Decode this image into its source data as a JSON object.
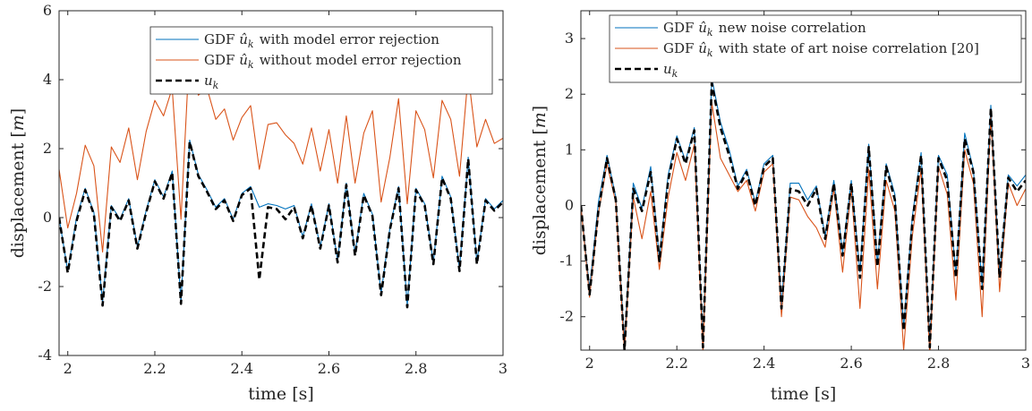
{
  "colors": {
    "blue": "#0072BD",
    "orange": "#D95319",
    "black": "#000000",
    "axis": "#262626"
  },
  "chart_data": [
    {
      "type": "line",
      "xlabel": "time [s]",
      "ylabel": "displacement [m]",
      "xlim": [
        1.98,
        3.0
      ],
      "ylim": [
        -4,
        6
      ],
      "xticks": [
        "2",
        "2.2",
        "2.4",
        "2.6",
        "2.8",
        "3"
      ],
      "yticks": [
        "-4",
        "-2",
        "0",
        "2",
        "4",
        "6"
      ],
      "grid": false,
      "legend_position": "top-right",
      "x": [
        1.98,
        2.0,
        2.02,
        2.04,
        2.06,
        2.08,
        2.1,
        2.12,
        2.14,
        2.16,
        2.18,
        2.2,
        2.22,
        2.24,
        2.26,
        2.28,
        2.3,
        2.32,
        2.34,
        2.36,
        2.38,
        2.4,
        2.42,
        2.44,
        2.46,
        2.48,
        2.5,
        2.52,
        2.54,
        2.56,
        2.58,
        2.6,
        2.62,
        2.64,
        2.66,
        2.68,
        2.7,
        2.72,
        2.74,
        2.76,
        2.78,
        2.8,
        2.82,
        2.84,
        2.86,
        2.88,
        2.9,
        2.92,
        2.94,
        2.96,
        2.98,
        3.0
      ],
      "series": [
        {
          "name": "GDF û_k with model error rejection",
          "color": "blue",
          "dash": false,
          "values": [
            0.0,
            -1.55,
            0.0,
            0.85,
            0.15,
            -2.45,
            0.35,
            -0.05,
            0.55,
            -0.85,
            0.2,
            1.1,
            0.6,
            1.35,
            -2.45,
            2.25,
            1.25,
            0.8,
            0.3,
            0.55,
            -0.05,
            0.7,
            0.9,
            0.3,
            0.4,
            0.35,
            0.25,
            0.35,
            -0.55,
            0.4,
            -0.85,
            0.4,
            -1.25,
            1.0,
            -1.05,
            0.7,
            0.1,
            -2.2,
            -0.3,
            0.9,
            -2.55,
            0.85,
            0.4,
            -1.3,
            1.2,
            0.6,
            -1.5,
            1.75,
            -1.3,
            0.55,
            0.25,
            0.5
          ]
        },
        {
          "name": "GDF û_k without model error rejection",
          "color": "orange",
          "dash": false,
          "values": [
            1.4,
            -0.3,
            0.7,
            2.1,
            1.5,
            -1.0,
            2.05,
            1.6,
            2.6,
            1.1,
            2.5,
            3.4,
            2.95,
            3.75,
            -0.05,
            4.95,
            3.55,
            3.75,
            2.85,
            3.15,
            2.25,
            2.9,
            3.25,
            1.4,
            2.7,
            2.75,
            2.4,
            2.15,
            1.55,
            2.6,
            1.35,
            2.55,
            1.0,
            2.95,
            1.0,
            2.45,
            3.1,
            0.45,
            1.75,
            3.45,
            0.4,
            3.1,
            2.55,
            1.15,
            3.4,
            2.85,
            1.2,
            4.15,
            2.05,
            2.85,
            2.15,
            2.3
          ]
        },
        {
          "name": "u_k",
          "color": "black",
          "dash": true,
          "values": [
            0.0,
            -1.6,
            -0.1,
            0.8,
            0.1,
            -2.55,
            0.3,
            -0.1,
            0.5,
            -0.9,
            0.15,
            1.05,
            0.55,
            1.3,
            -2.5,
            2.2,
            1.2,
            0.75,
            0.25,
            0.5,
            -0.1,
            0.65,
            0.85,
            -1.8,
            0.3,
            0.25,
            -0.05,
            0.3,
            -0.6,
            0.35,
            -0.9,
            0.35,
            -1.3,
            0.95,
            -1.1,
            0.65,
            0.05,
            -2.25,
            -0.35,
            0.85,
            -2.6,
            0.8,
            0.35,
            -1.35,
            1.15,
            0.55,
            -1.55,
            1.7,
            -1.35,
            0.5,
            0.2,
            0.45
          ]
        }
      ]
    },
    {
      "type": "line",
      "xlabel": "time [s]",
      "ylabel": "displacement [m]",
      "xlim": [
        1.98,
        3.0
      ],
      "ylim": [
        -2.6,
        3.5
      ],
      "xticks": [
        "2",
        "2.2",
        "2.4",
        "2.6",
        "2.8",
        "3"
      ],
      "yticks": [
        "-2",
        "-1",
        "0",
        "1",
        "2",
        "3"
      ],
      "grid": false,
      "legend_position": "top-right",
      "x": [
        1.98,
        2.0,
        2.02,
        2.04,
        2.06,
        2.08,
        2.1,
        2.12,
        2.14,
        2.16,
        2.18,
        2.2,
        2.22,
        2.24,
        2.26,
        2.28,
        2.3,
        2.32,
        2.34,
        2.36,
        2.38,
        2.4,
        2.42,
        2.44,
        2.46,
        2.48,
        2.5,
        2.52,
        2.54,
        2.56,
        2.58,
        2.6,
        2.62,
        2.64,
        2.66,
        2.68,
        2.7,
        2.72,
        2.74,
        2.76,
        2.78,
        2.8,
        2.82,
        2.84,
        2.86,
        2.88,
        2.9,
        2.92,
        2.94,
        2.96,
        2.98,
        3.0
      ],
      "series": [
        {
          "name": "GDF û_k new noise correlation",
          "color": "blue",
          "dash": false,
          "values": [
            0.0,
            -1.5,
            0.05,
            0.9,
            0.15,
            -2.5,
            0.4,
            -0.05,
            0.7,
            -0.95,
            0.55,
            1.25,
            0.8,
            1.4,
            -2.5,
            2.3,
            1.5,
            1.0,
            0.35,
            0.65,
            0.05,
            0.75,
            0.9,
            -1.8,
            0.4,
            0.4,
            0.1,
            0.35,
            -0.55,
            0.45,
            -0.85,
            0.45,
            -1.2,
            1.1,
            -1.05,
            0.75,
            0.2,
            -2.2,
            -0.2,
            0.95,
            -2.5,
            0.9,
            0.55,
            -1.25,
            1.3,
            0.65,
            -1.45,
            1.8,
            -1.25,
            0.55,
            0.35,
            0.55
          ]
        },
        {
          "name": "GDF û_k with state of art noise correlation [20]",
          "color": "orange",
          "dash": false,
          "values": [
            0.0,
            -1.65,
            -0.15,
            0.75,
            0.05,
            -2.65,
            0.15,
            -0.6,
            0.25,
            -1.15,
            0.15,
            0.95,
            0.45,
            1.1,
            -2.65,
            1.85,
            0.85,
            0.55,
            0.25,
            0.45,
            -0.1,
            0.6,
            0.75,
            -2.0,
            0.15,
            0.1,
            -0.2,
            -0.4,
            -0.75,
            0.3,
            -1.2,
            0.3,
            -1.85,
            0.65,
            -1.5,
            0.45,
            -0.1,
            -2.6,
            -0.55,
            0.65,
            -2.7,
            0.7,
            0.2,
            -1.7,
            1.0,
            0.4,
            -2.0,
            1.6,
            -1.55,
            0.4,
            0.0,
            0.3
          ]
        },
        {
          "name": "u_k",
          "color": "black",
          "dash": true,
          "values": [
            0.0,
            -1.6,
            -0.1,
            0.85,
            0.1,
            -2.6,
            0.3,
            -0.1,
            0.6,
            -1.0,
            0.45,
            1.2,
            0.75,
            1.35,
            -2.55,
            2.2,
            1.4,
            0.9,
            0.3,
            0.6,
            0.0,
            0.7,
            0.85,
            -1.85,
            0.3,
            0.25,
            0.0,
            0.3,
            -0.6,
            0.4,
            -0.9,
            0.4,
            -1.3,
            1.05,
            -1.1,
            0.7,
            0.1,
            -2.25,
            -0.3,
            0.9,
            -2.55,
            0.85,
            0.45,
            -1.3,
            1.2,
            0.6,
            -1.5,
            1.75,
            -1.3,
            0.5,
            0.25,
            0.45
          ]
        }
      ]
    }
  ]
}
